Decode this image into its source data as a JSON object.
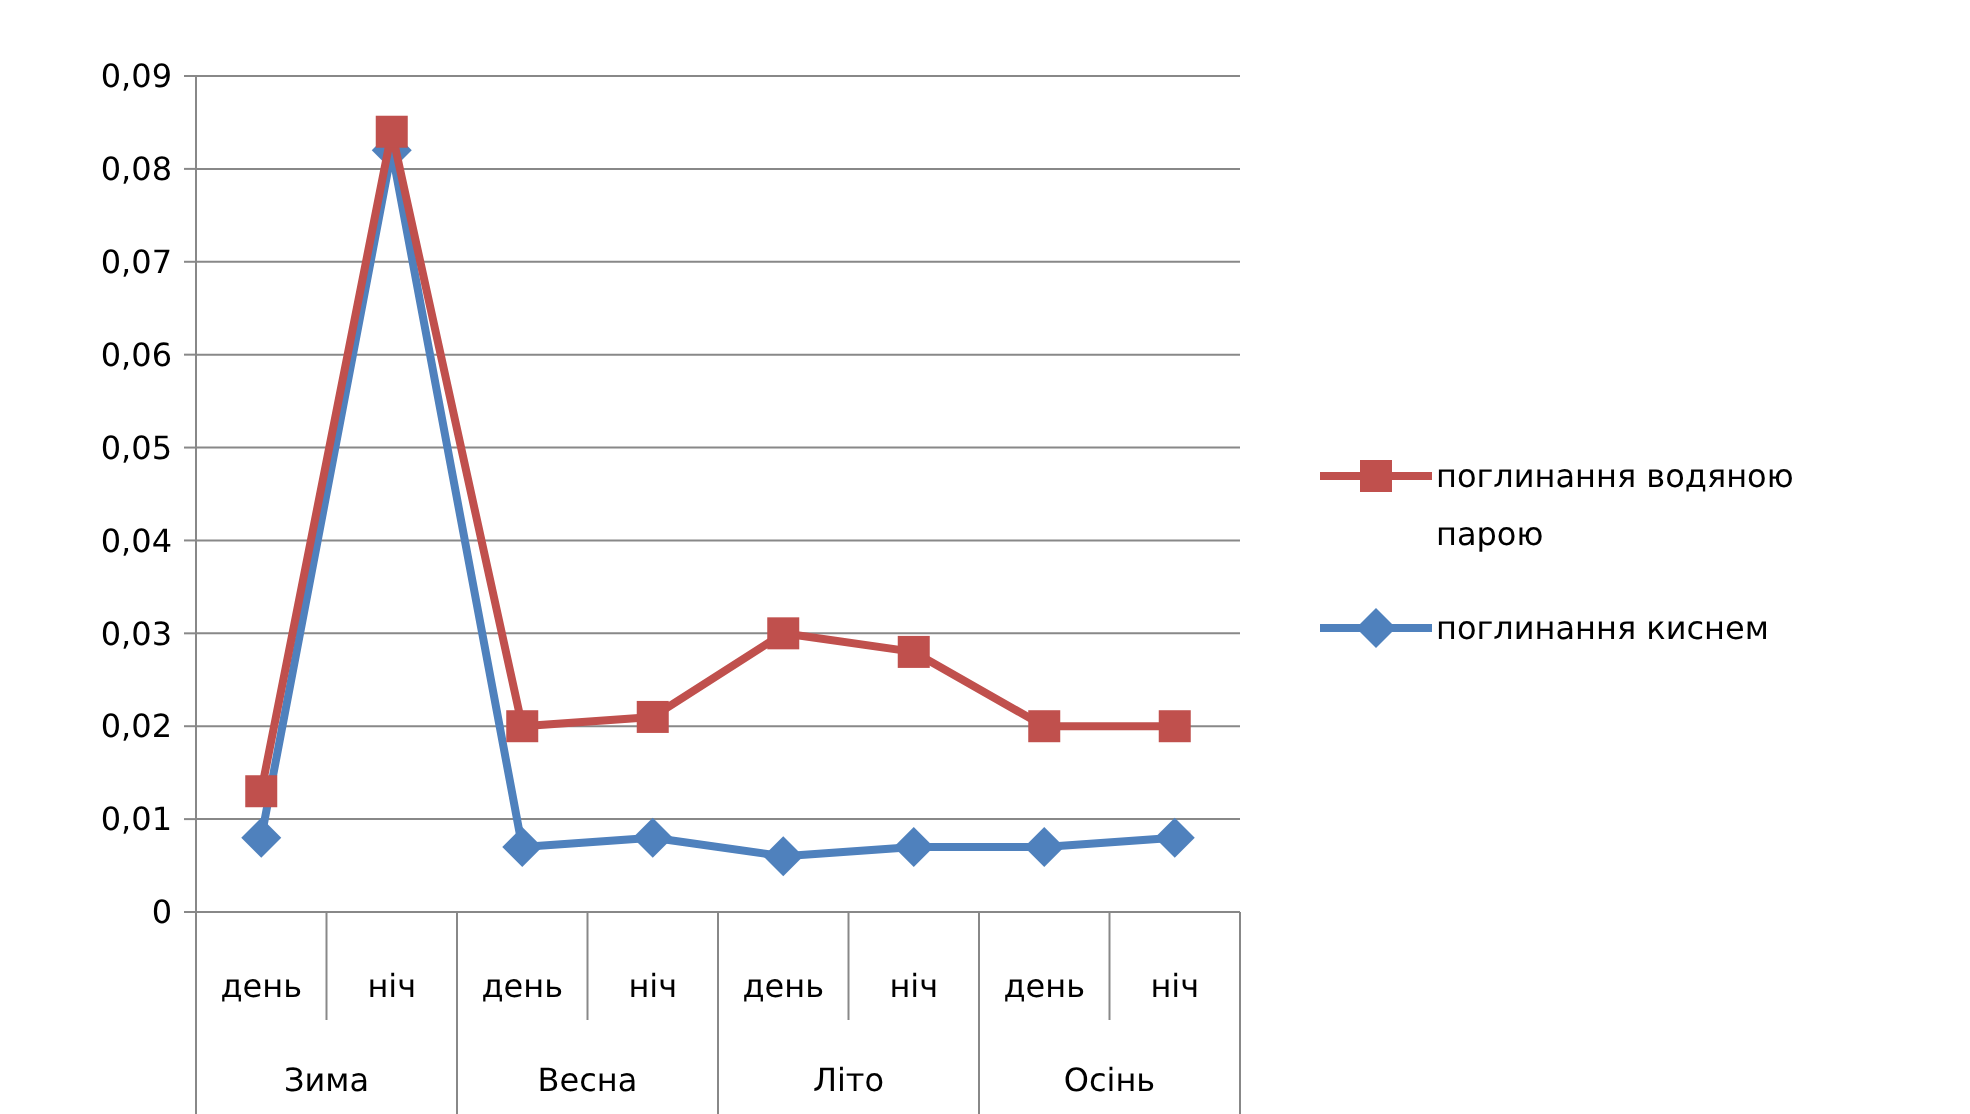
{
  "chart_data": {
    "type": "line",
    "categories": [
      "день",
      "ніч",
      "день",
      "ніч",
      "день",
      "ніч",
      "день",
      "ніч"
    ],
    "annotations": [
      "Зима",
      "Весна",
      "Літо",
      "Осінь"
    ],
    "series": [
      {
        "name": "поглинання водяною парою",
        "color": "#c0504d",
        "marker": "square",
        "values": [
          0.013,
          0.084,
          0.02,
          0.021,
          0.03,
          0.028,
          0.02,
          0.02
        ]
      },
      {
        "name": "поглинання киснем",
        "color": "#4f81bd",
        "marker": "diamond",
        "values": [
          0.008,
          0.082,
          0.007,
          0.008,
          0.006,
          0.007,
          0.007,
          0.008
        ]
      }
    ],
    "ylim": [
      0,
      0.09
    ],
    "yticks": [
      0,
      {
        "value": 0.01,
        "label": "0,01"
      },
      {
        "value": 0.02,
        "label": "0,02"
      },
      {
        "value": 0.03,
        "label": "0,03"
      },
      {
        "value": 0.04,
        "label": "0,04"
      },
      {
        "value": 0.05,
        "label": "0,05"
      },
      {
        "value": 0.06,
        "label": "0,06"
      },
      {
        "value": 0.07,
        "label": "0,07"
      },
      {
        "value": 0.08,
        "label": "0,08"
      },
      {
        "value": 0.09,
        "label": "0,09"
      }
    ],
    "grid": "y",
    "legend": "right",
    "line_style": "solid"
  }
}
